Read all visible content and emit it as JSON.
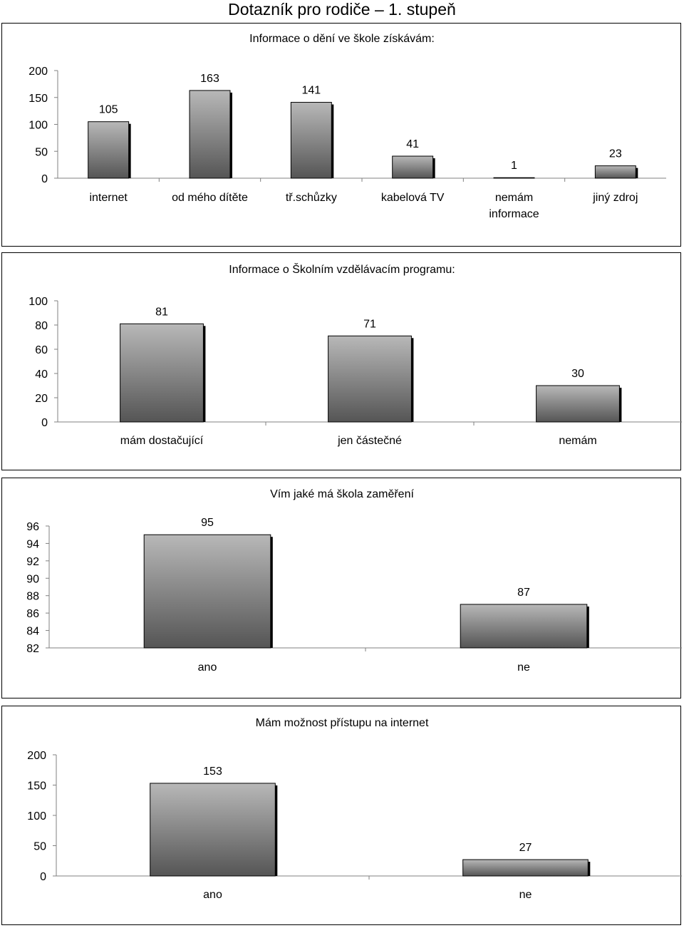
{
  "page": {
    "title": "Dotazník pro rodiče – 1. stupeň"
  },
  "chart_data": [
    {
      "type": "bar",
      "title": "Informace o dění ve škole získávám:",
      "categories": [
        "internet",
        "od mého dítěte",
        "tř.schůzky",
        "kabelová TV",
        "nemám informace",
        "jiný zdroj"
      ],
      "category_lines": [
        [
          "internet"
        ],
        [
          "od mého dítěte"
        ],
        [
          "tř.schůzky"
        ],
        [
          "kabelová TV"
        ],
        [
          "nemám",
          "informace"
        ],
        [
          "jiný zdroj"
        ]
      ],
      "values": [
        105,
        163,
        141,
        41,
        1,
        23
      ],
      "ylim": [
        0,
        200
      ],
      "yticks": [
        0,
        50,
        100,
        150,
        200
      ],
      "grid": false,
      "legend": "none",
      "xlabel": "",
      "ylabel": ""
    },
    {
      "type": "bar",
      "title": "Informace o Školním vzdělávacím programu:",
      "categories": [
        "mám dostačující",
        "jen částečné",
        "nemám"
      ],
      "category_lines": [
        [
          "mám dostačující"
        ],
        [
          "jen částečné"
        ],
        [
          "nemám"
        ]
      ],
      "values": [
        81,
        71,
        30
      ],
      "ylim": [
        0,
        100
      ],
      "yticks": [
        0,
        20,
        40,
        60,
        80,
        100
      ],
      "grid": false,
      "legend": "none",
      "xlabel": "",
      "ylabel": ""
    },
    {
      "type": "bar",
      "title": "Vím jaké má škola zaměření",
      "categories": [
        "ano",
        "ne"
      ],
      "category_lines": [
        [
          "ano"
        ],
        [
          "ne"
        ]
      ],
      "values": [
        95,
        87
      ],
      "ylim": [
        82,
        96
      ],
      "yticks": [
        82,
        84,
        86,
        88,
        90,
        92,
        94,
        96
      ],
      "grid": false,
      "legend": "none",
      "xlabel": "",
      "ylabel": ""
    },
    {
      "type": "bar",
      "title": "Mám možnost přístupu na internet",
      "categories": [
        "ano",
        "ne"
      ],
      "category_lines": [
        [
          "ano"
        ],
        [
          "ne"
        ]
      ],
      "values": [
        153,
        27
      ],
      "ylim": [
        0,
        200
      ],
      "yticks": [
        0,
        50,
        100,
        150,
        200
      ],
      "grid": false,
      "legend": "none",
      "xlabel": "",
      "ylabel": ""
    }
  ],
  "colors": {
    "bar_top": "#b8b8b8",
    "bar_bottom": "#555555",
    "bar_shadow": "#000000",
    "axis": "#808080"
  }
}
